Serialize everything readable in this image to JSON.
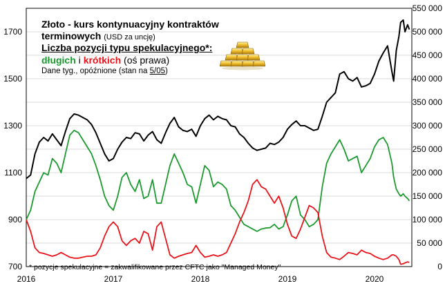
{
  "legend": {
    "line1": "Złoto - kurs kontynuacyjny kontraktów",
    "line2_main": "terminowych",
    "line2_unit": "(USD za uncję)",
    "line3": "Liczba pozycji typu spekulacyjnego*:",
    "long_label": "długich",
    "joiner": "i",
    "short_label": "krótkich",
    "axis_note": "(oś prawa)",
    "data_note": "Dane tyg.,  opóźnione (stan na",
    "data_date": "5/05",
    "data_close": ")"
  },
  "footnote": "* pozycje spekulacyjne = zakwalifikowane przez CFTC jako \"Managed Money\"",
  "icons": {
    "gold": "gold-bars-icon"
  },
  "colors": {
    "gold_line": "#000000",
    "long_line": "#1a9a2e",
    "short_line": "#e8141a",
    "grid": "#d9d9d9"
  },
  "chart_data": {
    "type": "line",
    "x_ticks": [
      "2016",
      "2017",
      "2018",
      "2019",
      "2020"
    ],
    "y_left": {
      "ticks": [
        "700",
        "900",
        "1100",
        "1300",
        "1500",
        "1700"
      ],
      "lim": [
        700,
        1800
      ]
    },
    "y_right": {
      "ticks": [
        "0",
        "50 000",
        "100 000",
        "150 000",
        "200 000",
        "250 000",
        "300 000",
        "350 000",
        "400 000",
        "450 000",
        "500 000",
        "550 000"
      ],
      "lim": [
        0,
        550000
      ]
    },
    "grid": "horizontal",
    "series": [
      {
        "name": "Złoto",
        "axis": "left",
        "points": [
          [
            2016.0,
            1075
          ],
          [
            2016.05,
            1090
          ],
          [
            2016.1,
            1180
          ],
          [
            2016.15,
            1230
          ],
          [
            2016.2,
            1250
          ],
          [
            2016.25,
            1235
          ],
          [
            2016.3,
            1265
          ],
          [
            2016.35,
            1240
          ],
          [
            2016.4,
            1215
          ],
          [
            2016.45,
            1275
          ],
          [
            2016.5,
            1330
          ],
          [
            2016.55,
            1350
          ],
          [
            2016.6,
            1345
          ],
          [
            2016.65,
            1335
          ],
          [
            2016.7,
            1325
          ],
          [
            2016.75,
            1305
          ],
          [
            2016.8,
            1270
          ],
          [
            2016.85,
            1225
          ],
          [
            2016.9,
            1180
          ],
          [
            2016.95,
            1150
          ],
          [
            2017.0,
            1160
          ],
          [
            2017.05,
            1200
          ],
          [
            2017.1,
            1230
          ],
          [
            2017.15,
            1250
          ],
          [
            2017.2,
            1245
          ],
          [
            2017.25,
            1270
          ],
          [
            2017.3,
            1265
          ],
          [
            2017.35,
            1235
          ],
          [
            2017.4,
            1260
          ],
          [
            2017.45,
            1275
          ],
          [
            2017.5,
            1240
          ],
          [
            2017.55,
            1225
          ],
          [
            2017.6,
            1270
          ],
          [
            2017.65,
            1310
          ],
          [
            2017.7,
            1335
          ],
          [
            2017.75,
            1295
          ],
          [
            2017.8,
            1280
          ],
          [
            2017.85,
            1275
          ],
          [
            2017.9,
            1285
          ],
          [
            2017.95,
            1255
          ],
          [
            2018.0,
            1300
          ],
          [
            2018.05,
            1330
          ],
          [
            2018.1,
            1345
          ],
          [
            2018.15,
            1325
          ],
          [
            2018.2,
            1340
          ],
          [
            2018.25,
            1330
          ],
          [
            2018.3,
            1325
          ],
          [
            2018.35,
            1300
          ],
          [
            2018.4,
            1295
          ],
          [
            2018.45,
            1265
          ],
          [
            2018.5,
            1250
          ],
          [
            2018.55,
            1225
          ],
          [
            2018.6,
            1205
          ],
          [
            2018.65,
            1195
          ],
          [
            2018.7,
            1200
          ],
          [
            2018.75,
            1205
          ],
          [
            2018.8,
            1225
          ],
          [
            2018.85,
            1220
          ],
          [
            2018.9,
            1230
          ],
          [
            2018.95,
            1250
          ],
          [
            2019.0,
            1285
          ],
          [
            2019.05,
            1305
          ],
          [
            2019.1,
            1320
          ],
          [
            2019.15,
            1300
          ],
          [
            2019.2,
            1300
          ],
          [
            2019.25,
            1290
          ],
          [
            2019.3,
            1280
          ],
          [
            2019.35,
            1285
          ],
          [
            2019.4,
            1340
          ],
          [
            2019.45,
            1400
          ],
          [
            2019.5,
            1420
          ],
          [
            2019.55,
            1440
          ],
          [
            2019.6,
            1520
          ],
          [
            2019.65,
            1530
          ],
          [
            2019.7,
            1500
          ],
          [
            2019.75,
            1490
          ],
          [
            2019.8,
            1505
          ],
          [
            2019.85,
            1465
          ],
          [
            2019.9,
            1470
          ],
          [
            2019.95,
            1480
          ],
          [
            2020.0,
            1520
          ],
          [
            2020.05,
            1575
          ],
          [
            2020.1,
            1610
          ],
          [
            2020.15,
            1640
          ],
          [
            2020.2,
            1530
          ],
          [
            2020.22,
            1490
          ],
          [
            2020.25,
            1620
          ],
          [
            2020.28,
            1680
          ],
          [
            2020.3,
            1740
          ],
          [
            2020.33,
            1750
          ],
          [
            2020.35,
            1700
          ],
          [
            2020.38,
            1730
          ],
          [
            2020.4,
            1710
          ]
        ]
      },
      {
        "name": "długich",
        "axis": "right",
        "points": [
          [
            2016.0,
            100000
          ],
          [
            2016.05,
            120000
          ],
          [
            2016.1,
            160000
          ],
          [
            2016.15,
            180000
          ],
          [
            2016.2,
            200000
          ],
          [
            2016.25,
            195000
          ],
          [
            2016.3,
            230000
          ],
          [
            2016.35,
            220000
          ],
          [
            2016.4,
            200000
          ],
          [
            2016.45,
            240000
          ],
          [
            2016.5,
            280000
          ],
          [
            2016.55,
            290000
          ],
          [
            2016.6,
            285000
          ],
          [
            2016.65,
            270000
          ],
          [
            2016.7,
            255000
          ],
          [
            2016.75,
            240000
          ],
          [
            2016.8,
            215000
          ],
          [
            2016.85,
            185000
          ],
          [
            2016.9,
            150000
          ],
          [
            2016.95,
            130000
          ],
          [
            2017.0,
            120000
          ],
          [
            2017.05,
            150000
          ],
          [
            2017.1,
            190000
          ],
          [
            2017.15,
            200000
          ],
          [
            2017.2,
            175000
          ],
          [
            2017.25,
            160000
          ],
          [
            2017.3,
            185000
          ],
          [
            2017.35,
            145000
          ],
          [
            2017.4,
            150000
          ],
          [
            2017.45,
            185000
          ],
          [
            2017.5,
            135000
          ],
          [
            2017.55,
            135000
          ],
          [
            2017.6,
            175000
          ],
          [
            2017.65,
            215000
          ],
          [
            2017.7,
            240000
          ],
          [
            2017.75,
            220000
          ],
          [
            2017.8,
            200000
          ],
          [
            2017.85,
            175000
          ],
          [
            2017.9,
            170000
          ],
          [
            2017.95,
            135000
          ],
          [
            2018.0,
            175000
          ],
          [
            2018.05,
            215000
          ],
          [
            2018.1,
            205000
          ],
          [
            2018.15,
            170000
          ],
          [
            2018.2,
            180000
          ],
          [
            2018.25,
            175000
          ],
          [
            2018.3,
            165000
          ],
          [
            2018.35,
            130000
          ],
          [
            2018.4,
            120000
          ],
          [
            2018.45,
            105000
          ],
          [
            2018.5,
            90000
          ],
          [
            2018.55,
            85000
          ],
          [
            2018.6,
            80000
          ],
          [
            2018.65,
            75000
          ],
          [
            2018.7,
            80000
          ],
          [
            2018.75,
            82000
          ],
          [
            2018.8,
            83000
          ],
          [
            2018.85,
            90000
          ],
          [
            2018.9,
            80000
          ],
          [
            2018.95,
            85000
          ],
          [
            2019.0,
            110000
          ],
          [
            2019.05,
            140000
          ],
          [
            2019.1,
            150000
          ],
          [
            2019.15,
            110000
          ],
          [
            2019.2,
            100000
          ],
          [
            2019.25,
            85000
          ],
          [
            2019.3,
            90000
          ],
          [
            2019.35,
            100000
          ],
          [
            2019.4,
            170000
          ],
          [
            2019.45,
            220000
          ],
          [
            2019.5,
            240000
          ],
          [
            2019.55,
            255000
          ],
          [
            2019.6,
            270000
          ],
          [
            2019.65,
            250000
          ],
          [
            2019.7,
            225000
          ],
          [
            2019.75,
            230000
          ],
          [
            2019.8,
            235000
          ],
          [
            2019.85,
            200000
          ],
          [
            2019.9,
            215000
          ],
          [
            2019.95,
            230000
          ],
          [
            2020.0,
            255000
          ],
          [
            2020.05,
            270000
          ],
          [
            2020.1,
            275000
          ],
          [
            2020.15,
            260000
          ],
          [
            2020.2,
            220000
          ],
          [
            2020.22,
            190000
          ],
          [
            2020.25,
            165000
          ],
          [
            2020.28,
            155000
          ],
          [
            2020.3,
            150000
          ],
          [
            2020.33,
            155000
          ],
          [
            2020.35,
            150000
          ],
          [
            2020.38,
            145000
          ],
          [
            2020.4,
            140000
          ]
        ]
      },
      {
        "name": "krótkich",
        "axis": "right",
        "points": [
          [
            2016.0,
            100000
          ],
          [
            2016.05,
            75000
          ],
          [
            2016.1,
            40000
          ],
          [
            2016.15,
            30000
          ],
          [
            2016.2,
            28000
          ],
          [
            2016.25,
            25000
          ],
          [
            2016.3,
            22000
          ],
          [
            2016.35,
            25000
          ],
          [
            2016.4,
            30000
          ],
          [
            2016.45,
            25000
          ],
          [
            2016.5,
            20000
          ],
          [
            2016.55,
            18000
          ],
          [
            2016.6,
            18000
          ],
          [
            2016.65,
            20000
          ],
          [
            2016.7,
            22000
          ],
          [
            2016.75,
            22000
          ],
          [
            2016.8,
            25000
          ],
          [
            2016.85,
            40000
          ],
          [
            2016.9,
            65000
          ],
          [
            2016.95,
            85000
          ],
          [
            2017.0,
            95000
          ],
          [
            2017.05,
            85000
          ],
          [
            2017.1,
            55000
          ],
          [
            2017.15,
            45000
          ],
          [
            2017.2,
            55000
          ],
          [
            2017.25,
            60000
          ],
          [
            2017.3,
            50000
          ],
          [
            2017.35,
            75000
          ],
          [
            2017.4,
            70000
          ],
          [
            2017.45,
            35000
          ],
          [
            2017.5,
            85000
          ],
          [
            2017.55,
            95000
          ],
          [
            2017.6,
            60000
          ],
          [
            2017.65,
            25000
          ],
          [
            2017.7,
            18000
          ],
          [
            2017.75,
            22000
          ],
          [
            2017.8,
            25000
          ],
          [
            2017.85,
            28000
          ],
          [
            2017.9,
            30000
          ],
          [
            2017.95,
            45000
          ],
          [
            2018.0,
            30000
          ],
          [
            2018.05,
            20000
          ],
          [
            2018.1,
            22000
          ],
          [
            2018.15,
            25000
          ],
          [
            2018.2,
            22000
          ],
          [
            2018.25,
            25000
          ],
          [
            2018.3,
            30000
          ],
          [
            2018.35,
            50000
          ],
          [
            2018.4,
            70000
          ],
          [
            2018.45,
            95000
          ],
          [
            2018.5,
            115000
          ],
          [
            2018.55,
            140000
          ],
          [
            2018.6,
            175000
          ],
          [
            2018.65,
            185000
          ],
          [
            2018.7,
            170000
          ],
          [
            2018.75,
            165000
          ],
          [
            2018.8,
            150000
          ],
          [
            2018.85,
            135000
          ],
          [
            2018.9,
            150000
          ],
          [
            2018.95,
            125000
          ],
          [
            2019.0,
            90000
          ],
          [
            2019.05,
            65000
          ],
          [
            2019.1,
            60000
          ],
          [
            2019.15,
            80000
          ],
          [
            2019.2,
            105000
          ],
          [
            2019.25,
            130000
          ],
          [
            2019.3,
            125000
          ],
          [
            2019.35,
            115000
          ],
          [
            2019.4,
            65000
          ],
          [
            2019.45,
            30000
          ],
          [
            2019.5,
            20000
          ],
          [
            2019.55,
            18000
          ],
          [
            2019.6,
            15000
          ],
          [
            2019.65,
            22000
          ],
          [
            2019.7,
            30000
          ],
          [
            2019.75,
            28000
          ],
          [
            2019.8,
            25000
          ],
          [
            2019.85,
            35000
          ],
          [
            2019.9,
            30000
          ],
          [
            2019.95,
            28000
          ],
          [
            2020.0,
            22000
          ],
          [
            2020.05,
            18000
          ],
          [
            2020.1,
            15000
          ],
          [
            2020.15,
            18000
          ],
          [
            2020.2,
            25000
          ],
          [
            2020.22,
            25000
          ],
          [
            2020.25,
            22000
          ],
          [
            2020.28,
            15000
          ],
          [
            2020.3,
            5000
          ],
          [
            2020.33,
            6000
          ],
          [
            2020.35,
            8000
          ],
          [
            2020.38,
            10000
          ],
          [
            2020.4,
            9000
          ]
        ]
      }
    ]
  }
}
